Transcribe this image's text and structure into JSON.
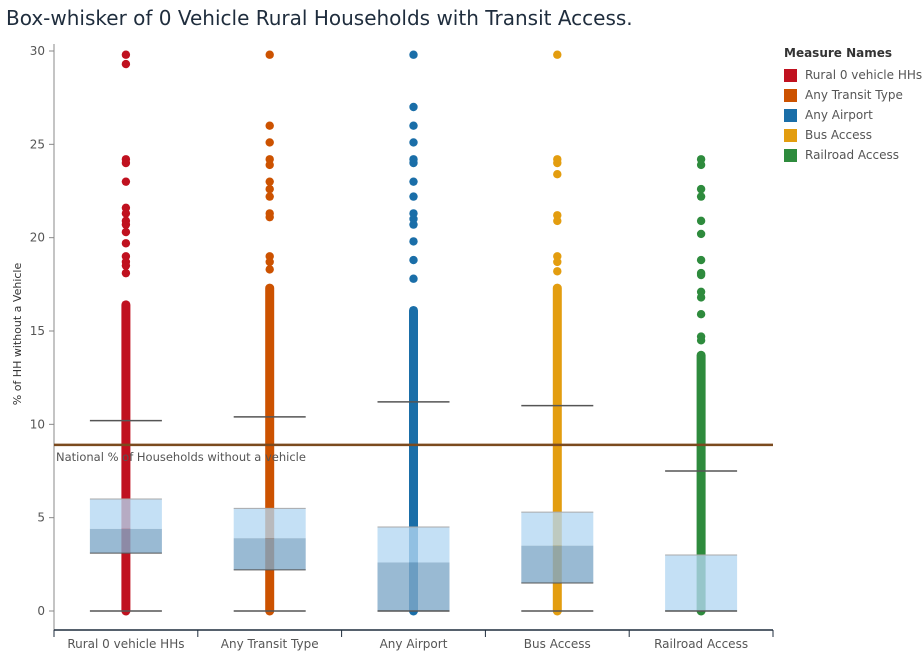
{
  "title": "Box-whisker of 0 Vehicle Rural Households with Transit Access.",
  "legend": {
    "title": "Measure Names",
    "items": [
      {
        "label": "Rural 0 vehicle HHs",
        "color": "#c0111f"
      },
      {
        "label": "Any Transit Type",
        "color": "#cc5200"
      },
      {
        "label": "Any Airport",
        "color": "#1a6ea8"
      },
      {
        "label": "Bus Access",
        "color": "#e39d0f"
      },
      {
        "label": "Railroad Access",
        "color": "#2e8b3d"
      }
    ]
  },
  "chart_data": {
    "type": "box",
    "title": "Box-whisker of 0 Vehicle Rural Households with Transit Access.",
    "xlabel": "",
    "ylabel": "% of HH without a Vehicle",
    "ylim": [
      -1,
      30.5
    ],
    "yticks": [
      0,
      5,
      10,
      15,
      20,
      25,
      30
    ],
    "grid": false,
    "legend_position": "right",
    "categories": [
      "Rural 0 vehicle HHs",
      "Any Transit Type",
      "Any Airport",
      "Bus Access",
      "Railroad Access"
    ],
    "reference_line": {
      "label": "National % of Households without a vehicle",
      "value": 8.9,
      "color": "#7b4a1e"
    },
    "series": [
      {
        "name": "Rural 0 vehicle HHs",
        "color": "#c0111f",
        "min": 0,
        "q1": 3.1,
        "median": 4.4,
        "q3": 6.0,
        "max": 10.2,
        "dense_top": 16.4,
        "outliers": [
          29.8,
          29.3,
          24.2,
          24.0,
          23.0,
          21.6,
          21.3,
          20.9,
          20.7,
          20.3,
          19.7,
          19.0,
          18.7,
          18.5,
          18.1
        ]
      },
      {
        "name": "Any Transit Type",
        "color": "#cc5200",
        "min": 0,
        "q1": 2.2,
        "median": 3.9,
        "q3": 5.5,
        "max": 10.4,
        "dense_top": 17.3,
        "outliers": [
          29.8,
          26.0,
          25.1,
          24.2,
          23.9,
          23.0,
          22.6,
          22.2,
          21.3,
          21.1,
          19.0,
          18.7,
          18.3
        ]
      },
      {
        "name": "Any Airport",
        "color": "#1a6ea8",
        "min": 0,
        "q1": 0,
        "median": 2.6,
        "q3": 4.5,
        "max": 11.2,
        "dense_top": 16.1,
        "outliers": [
          29.8,
          27.0,
          26.0,
          25.1,
          24.2,
          24.0,
          23.0,
          22.2,
          21.3,
          21.0,
          20.7,
          19.8,
          18.8,
          17.8
        ]
      },
      {
        "name": "Bus Access",
        "color": "#e39d0f",
        "min": 0,
        "q1": 1.5,
        "median": 3.5,
        "q3": 5.3,
        "max": 11.0,
        "dense_top": 17.3,
        "outliers": [
          29.8,
          24.2,
          24.0,
          23.4,
          21.2,
          20.9,
          19.0,
          18.7,
          18.2
        ]
      },
      {
        "name": "Railroad Access",
        "color": "#2e8b3d",
        "min": 0,
        "q1": 0,
        "median": 0,
        "q3": 3.0,
        "max": 7.5,
        "dense_top": 13.7,
        "outliers": [
          24.2,
          23.9,
          22.6,
          22.2,
          20.9,
          20.2,
          18.8,
          18.1,
          18.0,
          17.1,
          16.8,
          15.9,
          14.7,
          14.5
        ]
      }
    ]
  }
}
